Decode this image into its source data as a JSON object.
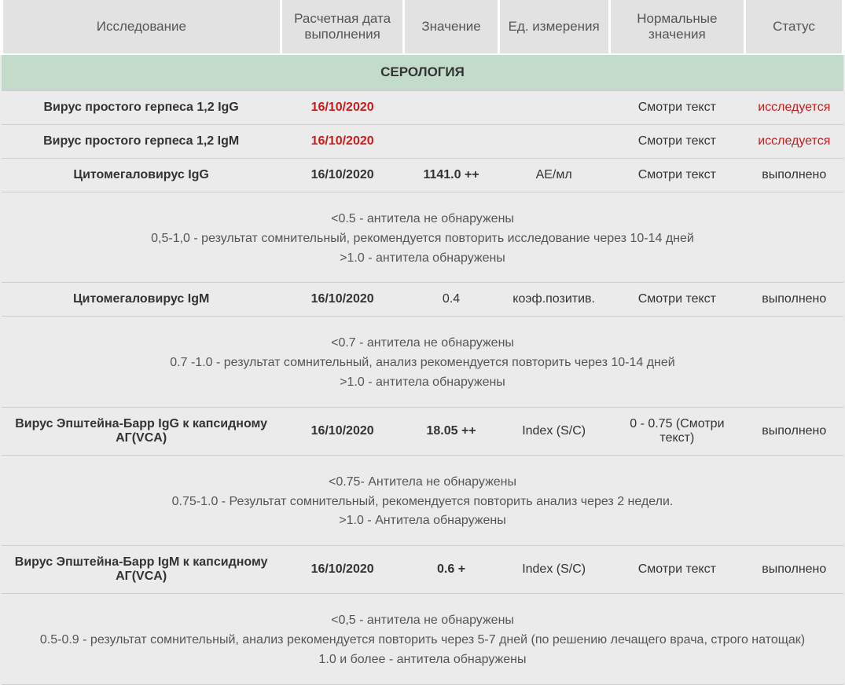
{
  "columns": {
    "test": "Исследование",
    "date": "Расчетная дата выполнения",
    "value": "Значение",
    "unit": "Ед. измерения",
    "norm": "Нормальные значения",
    "status": "Статус"
  },
  "section": "СЕРОЛОГИЯ",
  "rows": {
    "r1": {
      "test": "Вирус простого герпеса 1,2 IgG",
      "date": "16/10/2020",
      "value": "",
      "unit": "",
      "norm": "Смотри текст",
      "status": "исследуется"
    },
    "r2": {
      "test": "Вирус простого герпеса 1,2 IgM",
      "date": "16/10/2020",
      "value": "",
      "unit": "",
      "norm": "Смотри текст",
      "status": "исследуется"
    },
    "r3": {
      "test": "Цитомегаловирус IgG",
      "date": "16/10/2020",
      "value": "1141.0 ++",
      "unit": "АЕ/мл",
      "norm": "Смотри текст",
      "status": "выполнено"
    },
    "r4": {
      "test": "Цитомегаловирус IgM",
      "date": "16/10/2020",
      "value": "0.4",
      "unit": "коэф.позитив.",
      "norm": "Смотри текст",
      "status": "выполнено"
    },
    "r5": {
      "test": "Вирус Эпштейна-Барр IgG к капсидному АГ(VCA)",
      "date": "16/10/2020",
      "value": "18.05 ++",
      "unit": "Index (S/C)",
      "norm": "0 - 0.75 (Смотри текст)",
      "status": "выполнено"
    },
    "r6": {
      "test": "Вирус Эпштейна-Барр IgM к капсидному АГ(VCA)",
      "date": "16/10/2020",
      "value": "0.6 +",
      "unit": "Index (S/C)",
      "norm": "Смотри текст",
      "status": "выполнено"
    }
  },
  "notes": {
    "n1": {
      "l1": "<0.5 - антитела не обнаружены",
      "l2": "0,5-1,0 - результат сомнительный, рекомендуется повторить исследование через 10-14 дней",
      "l3": ">1.0 - антитела обнаружены"
    },
    "n2": {
      "l1": "<0.7 - антитела не обнаружены",
      "l2": "0.7 -1.0 - результат сомнительный, анализ рекомендуется повторить через 10-14 дней",
      "l3": ">1.0 - антитела обнаружены"
    },
    "n3": {
      "l1": "<0.75- Антитела не обнаружены",
      "l2": "0.75-1.0 - Результат сомнительный, рекомендуется повторить анализ через 2 недели.",
      "l3": ">1.0 - Антитела обнаружены"
    },
    "n4": {
      "l1": "<0,5 - антитела не обнаружены",
      "l2": "0.5-0.9 - результат сомнительный, анализ рекомендуется повторить через 5-7 дней (по решению лечащего врача, строго натощак)",
      "l3": "1.0 и более - антитела обнаружены"
    }
  },
  "colors": {
    "page_bg": "#ebebeb",
    "header_bg": "#e2e2e2",
    "section_bg": "#c3dcc9",
    "border": "#cfcfcf",
    "text": "#333333",
    "muted": "#555555",
    "alert": "#cc1a1a"
  }
}
